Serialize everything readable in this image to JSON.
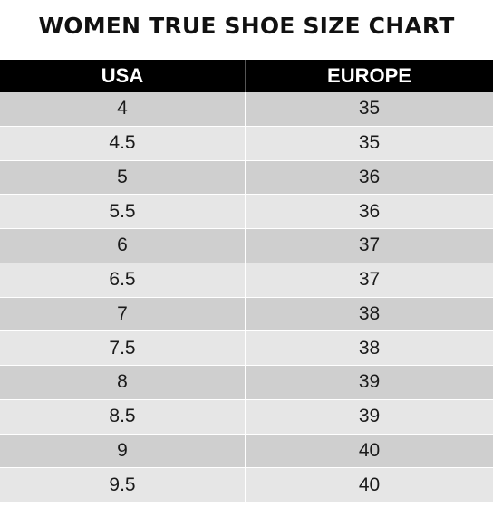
{
  "title": "WOMEN TRUE SHOE SIZE CHART",
  "table": {
    "headers": [
      "USA",
      "EUROPE"
    ],
    "rows": [
      [
        "4",
        "35"
      ],
      [
        "4.5",
        "35"
      ],
      [
        "5",
        "36"
      ],
      [
        "5.5",
        "36"
      ],
      [
        "6",
        "37"
      ],
      [
        "6.5",
        "37"
      ],
      [
        "7",
        "38"
      ],
      [
        "7.5",
        "38"
      ],
      [
        "8",
        "39"
      ],
      [
        "8.5",
        "39"
      ],
      [
        "9",
        "40"
      ],
      [
        "9.5",
        "40"
      ]
    ]
  },
  "colors": {
    "header_bg": "#000000",
    "row_dark": "#cfcfcf",
    "row_light": "#e6e6e6"
  }
}
